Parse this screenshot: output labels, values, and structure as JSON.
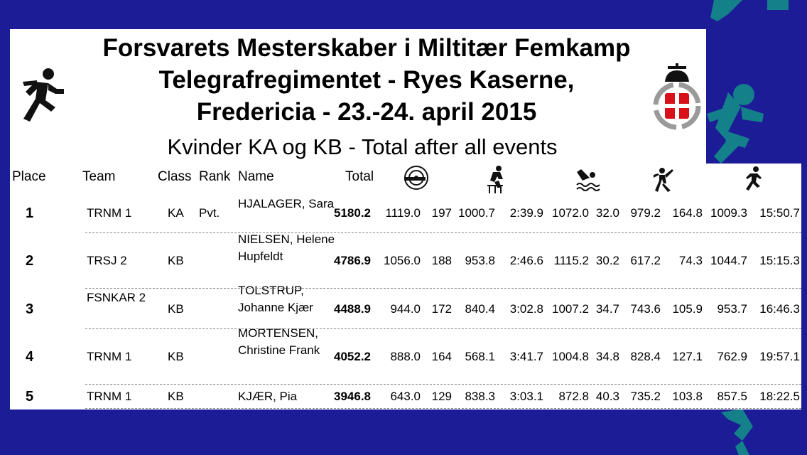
{
  "header": {
    "title_lines": [
      "Forsvarets Mesterskaber i Miltitær Femkamp",
      "Telegrafregimentet - Ryes Kaserne,",
      "Fredericia - 23.-24. april 2015"
    ],
    "subtitle": "Kvinder KA og KB - Total after all events"
  },
  "icons": {
    "logo": "running-soldier-icon",
    "crest": "royal-crest-icon",
    "events": [
      "shooting-icon",
      "obstacle-course-icon",
      "swimming-icon",
      "grenade-throw-icon",
      "cross-country-icon"
    ]
  },
  "columns": {
    "place": "Place",
    "team": "Team",
    "class": "Class",
    "rank": "Rank",
    "name": "Name",
    "total": "Total"
  },
  "rows": [
    {
      "place": "1",
      "team": "TRNM  1",
      "class": "KA",
      "rank": "Pvt.",
      "name": "HJALAGER, Sara",
      "total": "5180.2",
      "vals": [
        "1119.0",
        "197",
        "1000.7",
        "2:39.9",
        "1072.0",
        "32.0",
        "979.2",
        "164.8",
        "1009.3",
        "15:50.7"
      ]
    },
    {
      "place": "2",
      "team": "TRSJ  2",
      "class": "KB",
      "rank": "",
      "name": "NIELSEN, Helene Hupfeldt",
      "total": "4786.9",
      "vals": [
        "1056.0",
        "188",
        "953.8",
        "2:46.6",
        "1115.2",
        "30.2",
        "617.2",
        "74.3",
        "1044.7",
        "15:15.3"
      ]
    },
    {
      "place": "3",
      "team": "FSNKAR 2",
      "class": "KB",
      "rank": "",
      "name": "TOLSTRUP, Johanne Kjær",
      "total": "4488.9",
      "vals": [
        "944.0",
        "172",
        "840.4",
        "3:02.8",
        "1007.2",
        "34.7",
        "743.6",
        "105.9",
        "953.7",
        "16:46.3"
      ]
    },
    {
      "place": "4",
      "team": "TRNM  1",
      "class": "KB",
      "rank": "",
      "name": "MORTENSEN, Christine Frank",
      "total": "4052.2",
      "vals": [
        "888.0",
        "164",
        "568.1",
        "3:41.7",
        "1004.8",
        "34.8",
        "828.4",
        "127.1",
        "762.9",
        "19:57.1"
      ]
    },
    {
      "place": "5",
      "team": "TRNM  1",
      "class": "KB",
      "rank": "",
      "name": "KJÆR, Pia",
      "total": "3946.8",
      "vals": [
        "643.0",
        "129",
        "838.3",
        "3:03.1",
        "872.8",
        "40.3",
        "735.2",
        "103.8",
        "857.5",
        "18:22.5"
      ]
    }
  ],
  "colors": {
    "background": "#1c1c96",
    "figure": "#13808a",
    "crest_red": "#d8101a",
    "crest_grey": "#9a9a9a"
  }
}
